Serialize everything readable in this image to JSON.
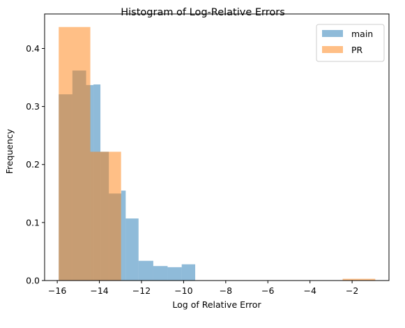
{
  "chart_data": {
    "type": "histogram",
    "title": "Histogram of Log-Relative Errors",
    "xlabel": "Log of Relative Error",
    "ylabel": "Frequency",
    "xlim": [
      -16.6,
      -0.25
    ],
    "ylim": [
      0.0,
      0.4595
    ],
    "x_ticks": [
      -16,
      -14,
      -12,
      -10,
      -8,
      -6,
      -4,
      -2
    ],
    "x_tick_labels": [
      "−16",
      "−14",
      "−12",
      "−10",
      "−8",
      "−6",
      "−4",
      "−2"
    ],
    "y_ticks": [
      0.0,
      0.1,
      0.2,
      0.3,
      0.4
    ],
    "y_tick_labels": [
      "0.0",
      "0.1",
      "0.2",
      "0.3",
      "0.4"
    ],
    "grid": false,
    "legend_position": "top-right",
    "series": [
      {
        "name": "main",
        "color": "#1f77b4",
        "alpha": 0.5,
        "bins": [
          {
            "x0": -15.93,
            "x1": -15.28,
            "value": 0.321
          },
          {
            "x0": -15.28,
            "x1": -14.63,
            "value": 0.362
          },
          {
            "x0": -14.63,
            "x1": -14.28,
            "value": 0.337
          },
          {
            "x0": -14.28,
            "x1": -13.95,
            "value": 0.338
          },
          {
            "x0": -13.95,
            "x1": -13.55,
            "value": 0.222
          },
          {
            "x0": -13.55,
            "x1": -12.96,
            "value": 0.15
          },
          {
            "x0": -12.96,
            "x1": -12.75,
            "value": 0.155
          },
          {
            "x0": -12.75,
            "x1": -12.14,
            "value": 0.107
          },
          {
            "x0": -12.14,
            "x1": -11.44,
            "value": 0.034
          },
          {
            "x0": -11.44,
            "x1": -10.76,
            "value": 0.025
          },
          {
            "x0": -10.76,
            "x1": -10.09,
            "value": 0.023
          },
          {
            "x0": -10.09,
            "x1": -9.45,
            "value": 0.028
          }
        ]
      },
      {
        "name": "PR",
        "color": "#ff7f0e",
        "alpha": 0.5,
        "bins": [
          {
            "x0": -15.93,
            "x1": -14.43,
            "value": 0.437
          },
          {
            "x0": -14.43,
            "x1": -12.97,
            "value": 0.222
          },
          {
            "x0": -12.97,
            "x1": -11.44,
            "value": 0.0
          },
          {
            "x0": -11.44,
            "x1": -9.95,
            "value": 0.0
          },
          {
            "x0": -9.95,
            "x1": -8.45,
            "value": 0.0
          },
          {
            "x0": -8.45,
            "x1": -6.95,
            "value": 0.0
          },
          {
            "x0": -6.95,
            "x1": -5.45,
            "value": 0.0
          },
          {
            "x0": -5.45,
            "x1": -3.95,
            "value": 0.0
          },
          {
            "x0": -3.95,
            "x1": -2.45,
            "value": 0.0
          },
          {
            "x0": -2.45,
            "x1": -0.9,
            "value": 0.003
          }
        ]
      }
    ]
  }
}
